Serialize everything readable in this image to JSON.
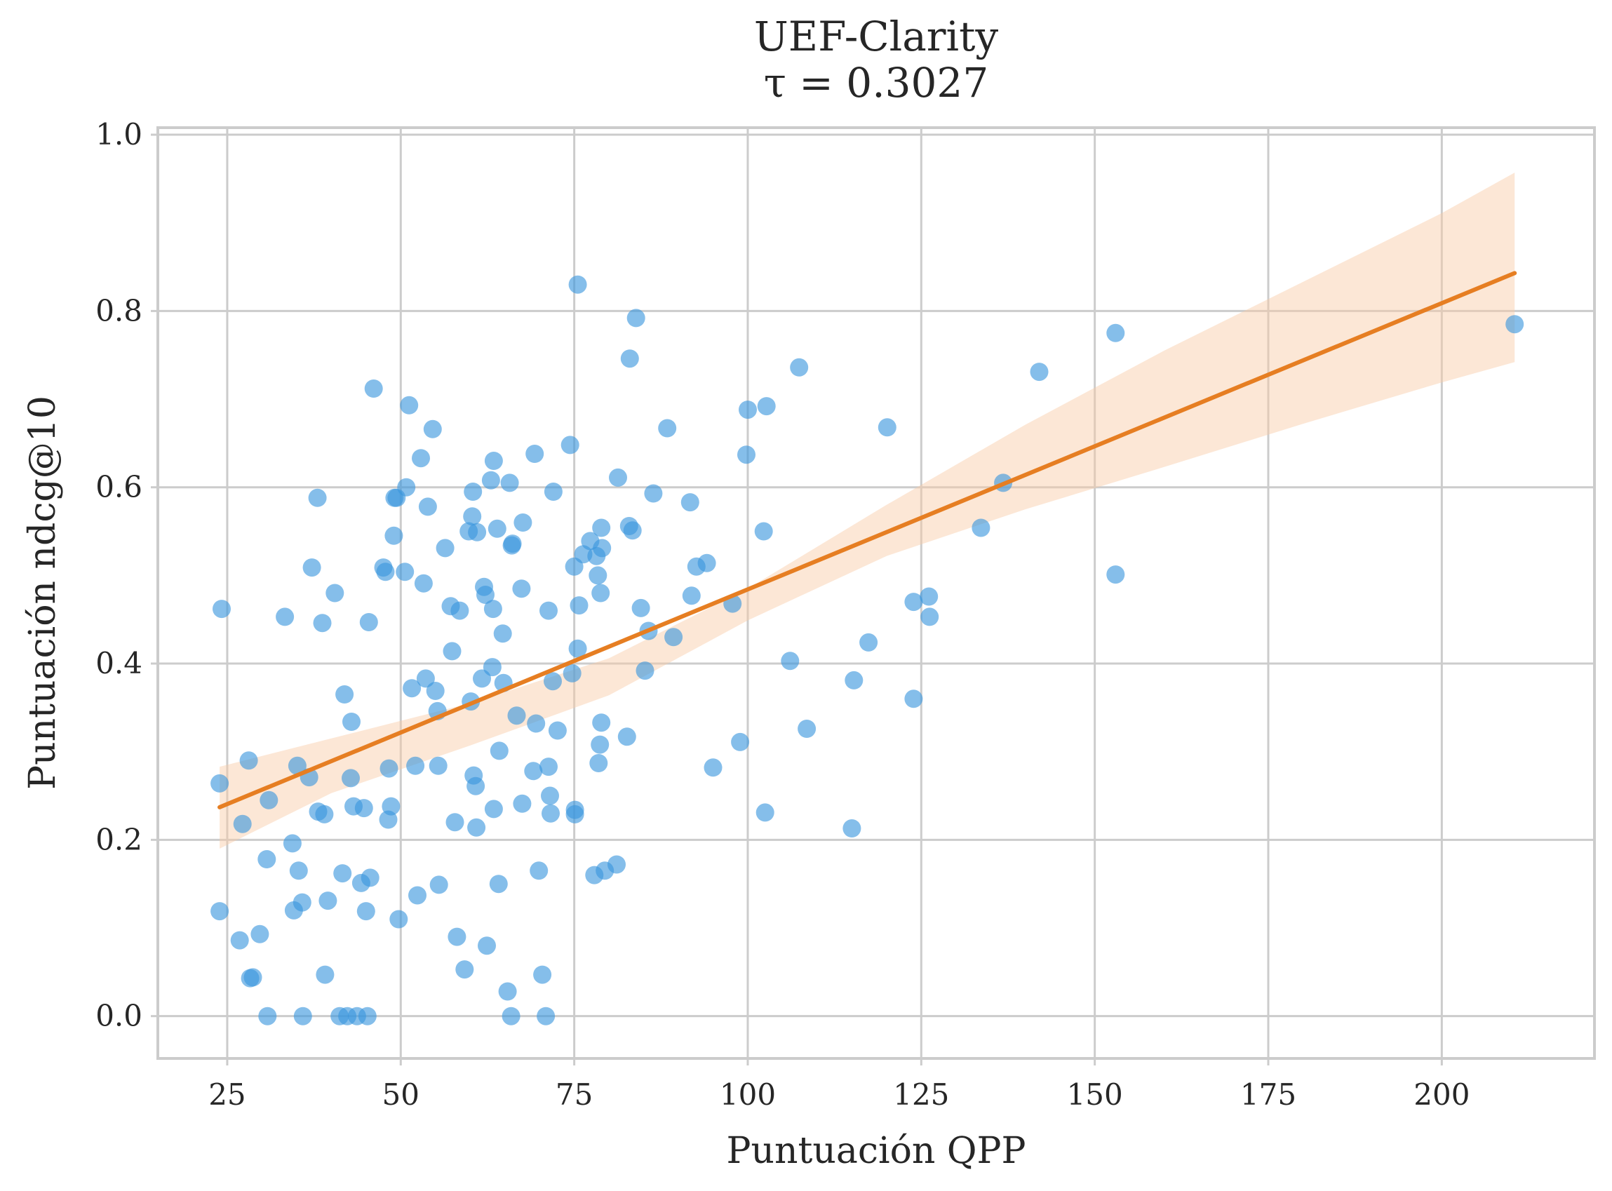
{
  "chart_data": {
    "type": "scatter",
    "title": "UEF-Clarity",
    "subtitle": "τ = 0.3027",
    "xlabel": "Puntuación QPP",
    "ylabel": "Puntuación ndcg@10",
    "xlim": [
      15,
      222
    ],
    "ylim": [
      -0.048,
      1.008
    ],
    "xticks": [
      25,
      50,
      75,
      100,
      125,
      150,
      175,
      200
    ],
    "yticks": [
      0.0,
      0.2,
      0.4,
      0.6,
      0.8,
      1.0
    ],
    "xtick_labels": [
      "25",
      "50",
      "75",
      "100",
      "125",
      "150",
      "175",
      "200"
    ],
    "ytick_labels": [
      "0.0",
      "0.2",
      "0.4",
      "0.6",
      "0.8",
      "1.0"
    ],
    "grid": true,
    "colors": {
      "points": "#3a96dd",
      "regression_line": "#e67e22",
      "confidence_band": "#f9c9a5",
      "grid": "#cccccc",
      "text": "#262626"
    },
    "regression": {
      "x_range": [
        23.9,
        210.5
      ],
      "y_start": 0.237,
      "y_end": 0.843
    },
    "confidence_band": {
      "x": [
        23.9,
        40,
        60,
        80,
        100,
        120,
        140,
        160,
        180,
        200,
        210.5
      ],
      "upper": [
        0.283,
        0.315,
        0.355,
        0.406,
        0.485,
        0.58,
        0.671,
        0.755,
        0.833,
        0.911,
        0.957
      ],
      "lower": [
        0.19,
        0.253,
        0.307,
        0.364,
        0.449,
        0.522,
        0.575,
        0.623,
        0.672,
        0.719,
        0.742
      ]
    },
    "points": [
      [
        24.2,
        0.462
      ],
      [
        23.9,
        0.264
      ],
      [
        23.9,
        0.119
      ],
      [
        27.2,
        0.218
      ],
      [
        28.1,
        0.29
      ],
      [
        28.3,
        0.043
      ],
      [
        28.7,
        0.044
      ],
      [
        26.8,
        0.086
      ],
      [
        29.7,
        0.093
      ],
      [
        31.0,
        0.245
      ],
      [
        30.7,
        0.178
      ],
      [
        30.8,
        0.0
      ],
      [
        33.3,
        0.453
      ],
      [
        34.4,
        0.196
      ],
      [
        34.6,
        0.12
      ],
      [
        35.1,
        0.284
      ],
      [
        35.3,
        0.165
      ],
      [
        35.8,
        0.129
      ],
      [
        35.9,
        0.0
      ],
      [
        36.8,
        0.271
      ],
      [
        37.2,
        0.509
      ],
      [
        38.0,
        0.588
      ],
      [
        38.1,
        0.232
      ],
      [
        38.7,
        0.446
      ],
      [
        39.0,
        0.229
      ],
      [
        39.1,
        0.047
      ],
      [
        39.5,
        0.131
      ],
      [
        40.5,
        0.48
      ],
      [
        41.2,
        0.0
      ],
      [
        41.6,
        0.162
      ],
      [
        41.9,
        0.365
      ],
      [
        42.3,
        0.0
      ],
      [
        42.9,
        0.334
      ],
      [
        42.8,
        0.27
      ],
      [
        43.2,
        0.238
      ],
      [
        43.7,
        0.0
      ],
      [
        44.3,
        0.151
      ],
      [
        44.7,
        0.236
      ],
      [
        45.0,
        0.119
      ],
      [
        45.2,
        0.0
      ],
      [
        45.4,
        0.447
      ],
      [
        45.6,
        0.157
      ],
      [
        46.1,
        0.712
      ],
      [
        47.5,
        0.509
      ],
      [
        47.8,
        0.504
      ],
      [
        48.2,
        0.223
      ],
      [
        48.3,
        0.281
      ],
      [
        48.6,
        0.238
      ],
      [
        49.0,
        0.545
      ],
      [
        49.1,
        0.588
      ],
      [
        49.4,
        0.588
      ],
      [
        49.7,
        0.11
      ],
      [
        50.6,
        0.504
      ],
      [
        50.8,
        0.6
      ],
      [
        51.2,
        0.693
      ],
      [
        51.6,
        0.372
      ],
      [
        52.1,
        0.284
      ],
      [
        52.4,
        0.137
      ],
      [
        52.9,
        0.633
      ],
      [
        53.3,
        0.491
      ],
      [
        53.6,
        0.383
      ],
      [
        53.9,
        0.578
      ],
      [
        54.6,
        0.666
      ],
      [
        55.0,
        0.369
      ],
      [
        55.3,
        0.346
      ],
      [
        55.4,
        0.284
      ],
      [
        55.5,
        0.149
      ],
      [
        56.4,
        0.531
      ],
      [
        57.2,
        0.465
      ],
      [
        57.4,
        0.414
      ],
      [
        57.8,
        0.22
      ],
      [
        58.1,
        0.09
      ],
      [
        58.5,
        0.46
      ],
      [
        59.2,
        0.053
      ],
      [
        59.8,
        0.55
      ],
      [
        60.1,
        0.357
      ],
      [
        60.3,
        0.567
      ],
      [
        60.4,
        0.595
      ],
      [
        60.5,
        0.273
      ],
      [
        60.8,
        0.261
      ],
      [
        60.9,
        0.214
      ],
      [
        61.0,
        0.549
      ],
      [
        61.7,
        0.383
      ],
      [
        62.0,
        0.487
      ],
      [
        62.2,
        0.478
      ],
      [
        62.4,
        0.08
      ],
      [
        63.0,
        0.608
      ],
      [
        63.2,
        0.396
      ],
      [
        63.3,
        0.462
      ],
      [
        63.4,
        0.63
      ],
      [
        63.4,
        0.235
      ],
      [
        63.9,
        0.553
      ],
      [
        64.1,
        0.15
      ],
      [
        64.2,
        0.301
      ],
      [
        64.7,
        0.434
      ],
      [
        64.8,
        0.378
      ],
      [
        65.4,
        0.028
      ],
      [
        65.7,
        0.605
      ],
      [
        65.9,
        0.0
      ],
      [
        66.0,
        0.534
      ],
      [
        66.1,
        0.536
      ],
      [
        66.7,
        0.341
      ],
      [
        67.4,
        0.485
      ],
      [
        67.5,
        0.241
      ],
      [
        67.6,
        0.56
      ],
      [
        69.1,
        0.278
      ],
      [
        69.3,
        0.638
      ],
      [
        69.5,
        0.332
      ],
      [
        69.9,
        0.165
      ],
      [
        70.4,
        0.047
      ],
      [
        70.9,
        0.0
      ],
      [
        71.3,
        0.46
      ],
      [
        71.3,
        0.283
      ],
      [
        71.5,
        0.25
      ],
      [
        71.6,
        0.23
      ],
      [
        71.9,
        0.38
      ],
      [
        72.0,
        0.595
      ],
      [
        72.6,
        0.324
      ],
      [
        74.4,
        0.648
      ],
      [
        74.7,
        0.389
      ],
      [
        75.0,
        0.51
      ],
      [
        75.1,
        0.234
      ],
      [
        75.1,
        0.229
      ],
      [
        75.5,
        0.83
      ],
      [
        75.5,
        0.417
      ],
      [
        75.7,
        0.466
      ],
      [
        76.3,
        0.524
      ],
      [
        77.3,
        0.539
      ],
      [
        77.9,
        0.16
      ],
      [
        78.2,
        0.522
      ],
      [
        78.4,
        0.5
      ],
      [
        78.5,
        0.287
      ],
      [
        78.7,
        0.308
      ],
      [
        78.8,
        0.48
      ],
      [
        78.9,
        0.333
      ],
      [
        78.9,
        0.554
      ],
      [
        79.0,
        0.531
      ],
      [
        79.4,
        0.165
      ],
      [
        81.1,
        0.172
      ],
      [
        81.3,
        0.611
      ],
      [
        82.6,
        0.317
      ],
      [
        82.9,
        0.556
      ],
      [
        83.0,
        0.746
      ],
      [
        83.4,
        0.551
      ],
      [
        83.9,
        0.792
      ],
      [
        84.6,
        0.463
      ],
      [
        85.2,
        0.392
      ],
      [
        85.7,
        0.437
      ],
      [
        86.4,
        0.593
      ],
      [
        88.4,
        0.667
      ],
      [
        89.3,
        0.43
      ],
      [
        91.7,
        0.583
      ],
      [
        91.9,
        0.477
      ],
      [
        92.6,
        0.51
      ],
      [
        94.1,
        0.514
      ],
      [
        95.0,
        0.282
      ],
      [
        97.8,
        0.468
      ],
      [
        98.9,
        0.311
      ],
      [
        99.8,
        0.637
      ],
      [
        100.0,
        0.688
      ],
      [
        102.3,
        0.55
      ],
      [
        102.7,
        0.692
      ],
      [
        102.5,
        0.231
      ],
      [
        106.1,
        0.403
      ],
      [
        107.4,
        0.736
      ],
      [
        108.5,
        0.326
      ],
      [
        115.0,
        0.213
      ],
      [
        115.3,
        0.381
      ],
      [
        117.4,
        0.424
      ],
      [
        120.1,
        0.668
      ],
      [
        123.9,
        0.36
      ],
      [
        123.9,
        0.47
      ],
      [
        126.1,
        0.476
      ],
      [
        126.2,
        0.453
      ],
      [
        133.6,
        0.554
      ],
      [
        136.8,
        0.605
      ],
      [
        142.0,
        0.731
      ],
      [
        153.0,
        0.775
      ],
      [
        153.0,
        0.501
      ],
      [
        210.5,
        0.785
      ]
    ]
  }
}
